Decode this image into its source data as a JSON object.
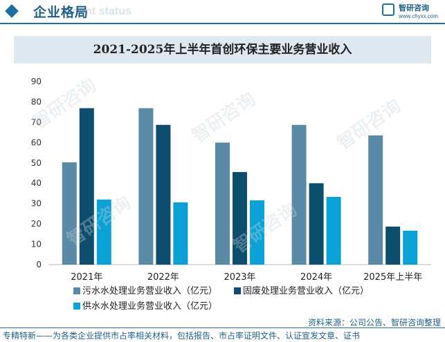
{
  "header": {
    "title": "企业格局",
    "ghost_text": "ment status",
    "logo_name": "智研咨询",
    "logo_url": "www.chyxx.com"
  },
  "colors": {
    "sewage": "#5a8aa6",
    "solid_waste": "#0d4e6e",
    "water_supply": "#0aa2d6",
    "accent": "#1f6f9c"
  },
  "chart_data": {
    "type": "bar",
    "title": "2021-2025年上半年首创环保主要业务营业收入",
    "categories": [
      "2021年",
      "2022年",
      "2023年",
      "2024年",
      "2025年上半年"
    ],
    "series": [
      {
        "name": "污水水处理业务营业收入（亿元）",
        "values": [
          50.3,
          76.9,
          60.0,
          68.7,
          63.5
        ]
      },
      {
        "name": "固废处理业务营业收入（亿元）",
        "values": [
          76.9,
          68.7,
          45.5,
          40.0,
          18.7
        ]
      },
      {
        "name": "供水水处理业务营业收入（亿元）",
        "values": [
          32.0,
          30.6,
          31.6,
          33.3,
          16.7
        ]
      }
    ],
    "yticks": [
      "0",
      "10",
      "20",
      "30",
      "40",
      "50",
      "60",
      "70",
      "80",
      "90"
    ],
    "ylim": [
      0,
      90
    ],
    "xlabel": "",
    "ylabel": "",
    "grid": false,
    "legend_position": "bottom"
  },
  "source": "资料来源：公司公告、智研咨询整理",
  "footer": "专精特新——为各类企业提供市占率相关材料，包括报告、市占率证明文件、认证宣发文章、证书",
  "watermark": "智研咨询"
}
